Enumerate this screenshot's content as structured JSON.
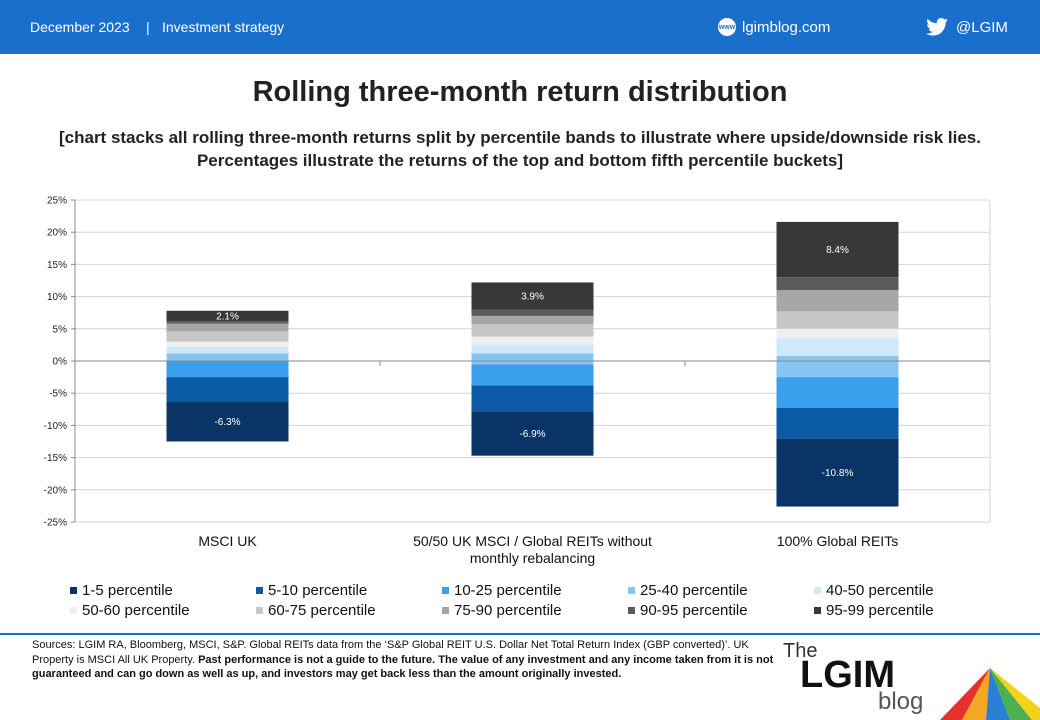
{
  "header": {
    "date": "December 2023",
    "separator": "|",
    "category": "Investment strategy",
    "site": "lgimblog.com",
    "site_icon_text": "www",
    "twitter": "@LGIM"
  },
  "title": "Rolling three-month return distribution",
  "subtitle": "[chart stacks all rolling three-month returns split by percentile bands to illustrate where upside/downside risk lies. Percentages illustrate the returns of the top and bottom fifth percentile buckets]",
  "chart_data": {
    "type": "bar",
    "stacked": true,
    "categories": [
      "MSCI UK",
      "50/50 UK MSCI / Global REITs without monthly rebalancing",
      "100% Global REITs"
    ],
    "ylim": [
      -25,
      25
    ],
    "yticks": [
      25,
      20,
      15,
      10,
      5,
      0,
      -5,
      -10,
      -15,
      -20,
      -25
    ],
    "ytick_labels": [
      "25%",
      "20%",
      "15%",
      "10%",
      "5%",
      "0%",
      "-5%",
      "-10%",
      "-15%",
      "-20%",
      "-25%"
    ],
    "legend_position": "bottom",
    "series": [
      {
        "name": "1-5 percentile",
        "color": "#0a3466",
        "ranges": [
          [
            -12.5,
            -6.3
          ],
          [
            -14.7,
            -7.8
          ],
          [
            -22.6,
            -12.0
          ]
        ]
      },
      {
        "name": "5-10 percentile",
        "color": "#0b5aa6",
        "ranges": [
          [
            -6.3,
            -2.5
          ],
          [
            -7.8,
            -3.8
          ],
          [
            -12.0,
            -7.3
          ]
        ]
      },
      {
        "name": "10-25 percentile",
        "color": "#3aa0ee",
        "ranges": [
          [
            -2.5,
            0.0
          ],
          [
            -3.8,
            -0.5
          ],
          [
            -7.3,
            -2.5
          ]
        ]
      },
      {
        "name": "25-40 percentile",
        "color": "#87c6f3",
        "ranges": [
          [
            0.0,
            1.2
          ],
          [
            -0.5,
            1.2
          ],
          [
            -2.5,
            0.8
          ]
        ]
      },
      {
        "name": "40-50 percentile",
        "color": "#cfe8fa",
        "ranges": [
          [
            1.2,
            2.2
          ],
          [
            1.2,
            2.6
          ],
          [
            0.8,
            3.5
          ]
        ]
      },
      {
        "name": "50-60 percentile",
        "color": "#efefef",
        "ranges": [
          [
            2.2,
            3.0
          ],
          [
            2.6,
            3.8
          ],
          [
            3.5,
            5.0
          ]
        ]
      },
      {
        "name": "60-75 percentile",
        "color": "#c7c7c7",
        "ranges": [
          [
            3.0,
            4.6
          ],
          [
            3.8,
            5.7
          ],
          [
            5.0,
            7.7
          ]
        ]
      },
      {
        "name": "75-90 percentile",
        "color": "#a6a6a6",
        "ranges": [
          [
            4.6,
            5.8
          ],
          [
            5.7,
            7.0
          ],
          [
            7.7,
            11.0
          ]
        ]
      },
      {
        "name": "90-95 percentile",
        "color": "#5a5a5a",
        "ranges": [
          [
            5.8,
            6.2
          ],
          [
            7.0,
            8.0
          ],
          [
            11.0,
            13.0
          ]
        ]
      },
      {
        "name": "95-99 percentile",
        "color": "#383838",
        "ranges": [
          [
            6.2,
            7.8
          ],
          [
            8.0,
            12.2
          ],
          [
            13.0,
            21.6
          ]
        ]
      }
    ],
    "data_labels": [
      {
        "category_index": 0,
        "series_index": 9,
        "text": "2.1%"
      },
      {
        "category_index": 0,
        "series_index": 0,
        "text": "-6.3%"
      },
      {
        "category_index": 1,
        "series_index": 9,
        "text": "3.9%"
      },
      {
        "category_index": 1,
        "series_index": 0,
        "text": "-6.9%"
      },
      {
        "category_index": 2,
        "series_index": 9,
        "text": "8.4%"
      },
      {
        "category_index": 2,
        "series_index": 0,
        "text": "-10.8%"
      }
    ]
  },
  "footer": {
    "sources_text": "Sources: LGIM RA, Bloomberg, MSCI, S&P. Global REITs data from the ‘S&P Global REIT U.S. Dollar Net Total Return Index (GBP converted)’. UK Property is MSCI All UK Property.",
    "disclaimer_text": "Past performance is not a guide to the future. The value of any investment and any income taken from it is not guaranteed and can go down as well as up, and investors may get back less than the amount originally invested."
  },
  "logo": {
    "the": "The",
    "lgim": "LGIM",
    "blog": "blog"
  }
}
